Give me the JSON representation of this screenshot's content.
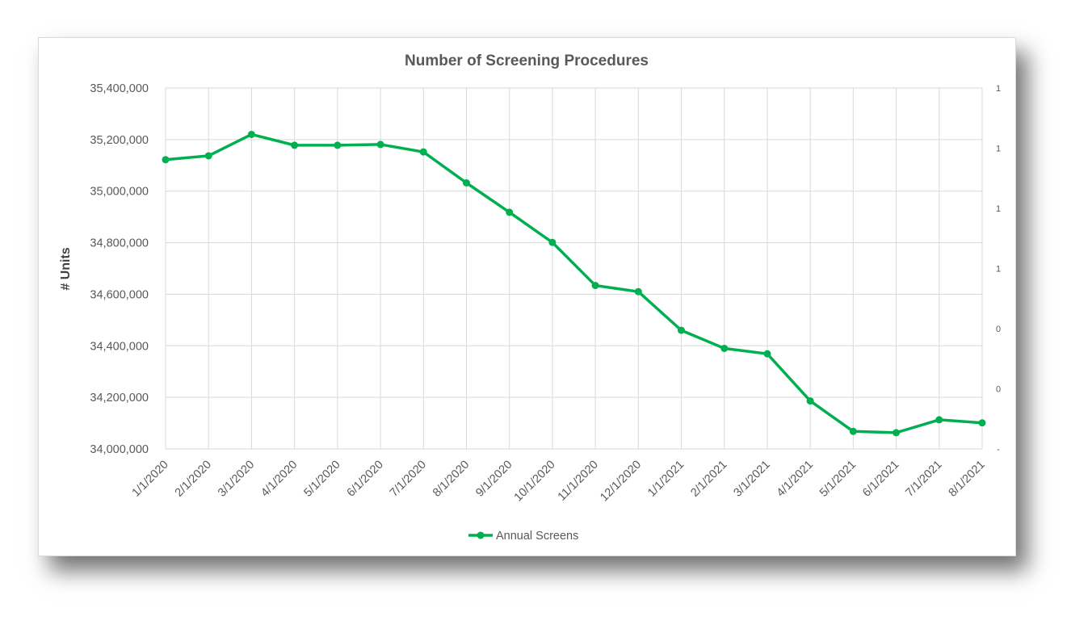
{
  "chart_data": {
    "type": "line",
    "title": "Number of Screening Procedures",
    "ylabel": "# Units",
    "xlabel": "",
    "categories": [
      "1/1/2020",
      "2/1/2020",
      "3/1/2020",
      "4/1/2020",
      "5/1/2020",
      "6/1/2020",
      "7/1/2020",
      "8/1/2020",
      "9/1/2020",
      "10/1/2020",
      "11/1/2020",
      "12/1/2020",
      "1/1/2021",
      "2/1/2021",
      "3/1/2021",
      "4/1/2021",
      "5/1/2021",
      "6/1/2021",
      "7/1/2021",
      "8/1/2021"
    ],
    "series": [
      {
        "name": "Annual Screens",
        "color": "#00b050",
        "values": [
          35122000,
          35137000,
          35220000,
          35178000,
          35178000,
          35181000,
          35152000,
          35032000,
          34918000,
          34801000,
          34634000,
          34610000,
          34460000,
          34390000,
          34369000,
          34186000,
          34068000,
          34063000,
          34113000,
          34101000
        ]
      }
    ],
    "ylim": [
      34000000,
      35400000
    ],
    "yticks": [
      "34,000,000",
      "34,200,000",
      "34,400,000",
      "34,600,000",
      "34,800,000",
      "35,000,000",
      "35,200,000",
      "35,400,000"
    ],
    "y2ticks": [
      "-",
      "0",
      "0",
      "1",
      "1",
      "1",
      "1"
    ],
    "grid": true,
    "legend_position": "bottom"
  }
}
